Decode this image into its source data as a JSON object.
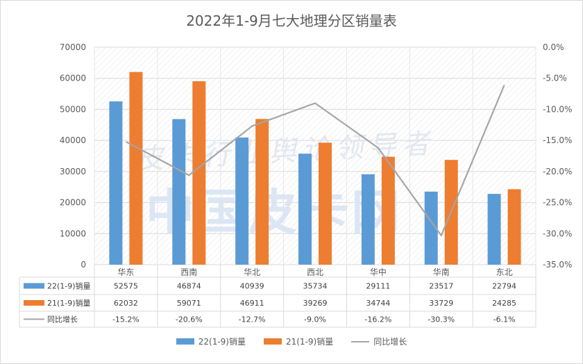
{
  "chart_data": {
    "type": "bar",
    "title": "2022年1-9月七大地理分区销量表",
    "categories": [
      "华东",
      "西南",
      "华北",
      "西北",
      "华中",
      "华南",
      "东北"
    ],
    "series": [
      {
        "name": "22(1-9)销量",
        "type": "bar",
        "axis": "left",
        "color": "#5b9bd5",
        "values": [
          52575,
          46874,
          40939,
          35734,
          29111,
          23517,
          22794
        ]
      },
      {
        "name": "21(1-9)销量",
        "type": "bar",
        "axis": "left",
        "color": "#ed7d31",
        "values": [
          62032,
          59071,
          46911,
          39269,
          34744,
          33729,
          24285
        ]
      },
      {
        "name": "同比增长",
        "type": "line",
        "axis": "right",
        "color": "#a5a5a5",
        "values": [
          -15.2,
          -20.6,
          -12.7,
          -9.0,
          -16.2,
          -30.3,
          -6.1
        ]
      }
    ],
    "table_values": {
      "22(1-9)销量": [
        "52575",
        "46874",
        "40939",
        "35734",
        "29111",
        "23517",
        "22794"
      ],
      "21(1-9)销量": [
        "62032",
        "59071",
        "46911",
        "39269",
        "34744",
        "33729",
        "24285"
      ],
      "同比增长": [
        "-15.2%",
        "-20.6%",
        "-12.7%",
        "-9.0%",
        "-16.2%",
        "-30.3%",
        "-6.1%"
      ]
    },
    "ylim_left": [
      0,
      70000
    ],
    "ylim_right": [
      -35,
      0
    ],
    "y_ticks_left": [
      "0",
      "10000",
      "20000",
      "30000",
      "40000",
      "50000",
      "60000",
      "70000"
    ],
    "y_ticks_right": [
      "0.0%",
      "-5.0%",
      "-10.0%",
      "-15.0%",
      "-20.0%",
      "-25.0%",
      "-30.0%",
      "-35.0%"
    ],
    "grid": true,
    "legend_placement": "bottom",
    "data_table": true
  },
  "watermark": {
    "line1": "皮卡行业舆论领导者",
    "line2": "中国皮卡网"
  }
}
